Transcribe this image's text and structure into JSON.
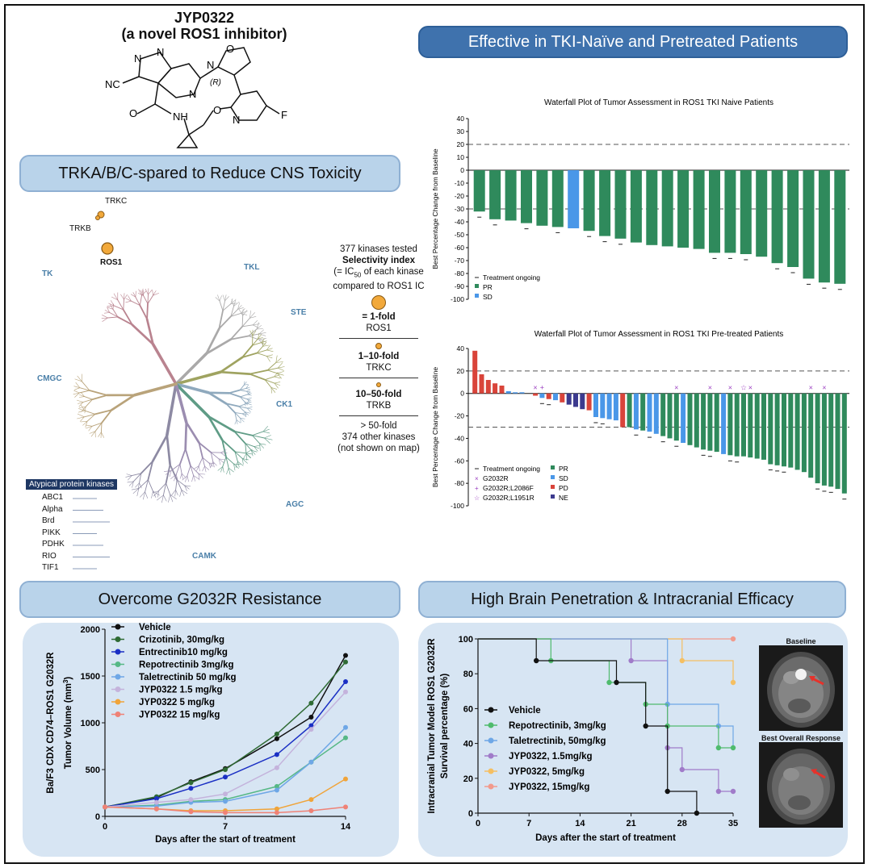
{
  "compound": {
    "name": "JYP0322",
    "subtitle": "(a novel ROS1 inhibitor)",
    "atoms": {
      "n1": "N",
      "n2": "N",
      "n3": "N",
      "n4": "N",
      "n5": "N",
      "o1": "O",
      "o2": "O",
      "o3": "O",
      "nh": "NH",
      "cn": "NC",
      "f": "F",
      "r": "(R)"
    }
  },
  "banners": {
    "top_right": "Effective in TKI-Naïve and Pretreated Patients",
    "trk": "TRKA/B/C-spared to Reduce CNS Toxicity",
    "g2032r": "Overcome G2032R Resistance",
    "brain": "High Brain Penetration & Intracranial Efficacy"
  },
  "kinome": {
    "groups": [
      "TK",
      "TKL",
      "STE",
      "CK1",
      "AGC",
      "CAMK",
      "CMGC"
    ],
    "highlights": [
      "TRKC",
      "TRKB",
      "ROS1"
    ],
    "atypical_title": "Atypical protein kinases",
    "atypical": [
      "ABC1",
      "Alpha",
      "Brd",
      "PIKK",
      "PDHK",
      "RIO",
      "TIF1"
    ]
  },
  "selectivity": {
    "line1": "377 kinases tested",
    "line2": "Selectivity index",
    "line3a": "(= IC",
    "line3sub": "50",
    "line3b": " of each kinase",
    "line4": "compared to ROS1 IC",
    "tiers": [
      {
        "fold": "= 1-fold",
        "desc": "ROS1"
      },
      {
        "fold": "1–10-fold",
        "desc": "TRKC"
      },
      {
        "fold": "10–50-fold",
        "desc": "TRKB"
      },
      {
        "fold": "> 50-fold",
        "desc": "374 other kinases",
        "desc2": "(not shown on map)"
      }
    ]
  },
  "colors": {
    "pr": "#2f8a5c",
    "sd": "#4a97e8",
    "pd": "#d9443a",
    "ne": "#3c3a8e",
    "banner": "#b9d3ea",
    "dark_banner": "#3f72ad",
    "marker": "#f2a93b"
  },
  "chart_data": [
    {
      "type": "bar",
      "title": "Waterfall Plot of Tumor Assessment in ROS1 TKI Naive Patients",
      "ylabel": "Best Percentage Change from Baseline",
      "ylim": [
        -100,
        40
      ],
      "yticks": [
        40,
        30,
        20,
        10,
        0,
        -10,
        -20,
        -30,
        -40,
        -50,
        -60,
        -70,
        -80,
        -90,
        -100
      ],
      "reference_lines": [
        20,
        -30
      ],
      "values": [
        -32,
        -38,
        -39,
        -41,
        -43,
        -44,
        -45,
        -47,
        -51,
        -53,
        -56,
        -58,
        -59,
        -60,
        -61,
        -64,
        -64,
        -65,
        -67,
        -72,
        -75,
        -84,
        -87,
        -88
      ],
      "categories": [
        "PR",
        "PR",
        "PR",
        "PR",
        "PR",
        "PR",
        "SD",
        "PR",
        "PR",
        "PR",
        "PR",
        "PR",
        "PR",
        "PR",
        "PR",
        "PR",
        "PR",
        "PR",
        "PR",
        "PR",
        "PR",
        "PR",
        "PR",
        "PR"
      ],
      "ongoing": [
        true,
        true,
        false,
        true,
        false,
        true,
        false,
        true,
        true,
        true,
        false,
        false,
        false,
        false,
        false,
        true,
        true,
        true,
        false,
        true,
        true,
        true,
        true,
        true
      ],
      "legend": [
        {
          "label": "Treatment ongoing",
          "kind": "dash"
        },
        {
          "label": "PR",
          "kind": "PR"
        },
        {
          "label": "SD",
          "kind": "SD"
        }
      ]
    },
    {
      "type": "bar",
      "title": "Waterfall Plot of Tumor Assessment in ROS1 TKI Pre-treated Patients",
      "ylabel": "Best Percentage Change from Baseline",
      "ylim": [
        -100,
        40
      ],
      "yticks": [
        40,
        20,
        0,
        -20,
        -40,
        -60,
        -80,
        -100
      ],
      "reference_lines": [
        20,
        -30
      ],
      "values": [
        38,
        17,
        12,
        9,
        7,
        2,
        1,
        1,
        0,
        -2,
        -4,
        -5,
        -6,
        -8,
        -10,
        -12,
        -14,
        -15,
        -21,
        -22,
        -23,
        -24,
        -30,
        -30,
        -32,
        -33,
        -34,
        -36,
        -38,
        -40,
        -42,
        -44,
        -46,
        -48,
        -50,
        -51,
        -52,
        -54,
        -55,
        -56,
        -56,
        -57,
        -58,
        -59,
        -63,
        -64,
        -65,
        -66,
        -68,
        -70,
        -75,
        -80,
        -82,
        -83,
        -85,
        -89
      ],
      "categories": [
        "PD",
        "PD",
        "PD",
        "PD",
        "PD",
        "SD",
        "SD",
        "SD",
        "SD",
        "PD",
        "SD",
        "PD",
        "SD",
        "PD",
        "NE",
        "NE",
        "NE",
        "PD",
        "SD",
        "SD",
        "SD",
        "SD",
        "PD",
        "PR",
        "SD",
        "PR",
        "SD",
        "SD",
        "PR",
        "PR",
        "PR",
        "SD",
        "PR",
        "PR",
        "PR",
        "PR",
        "PR",
        "SD",
        "PR",
        "PR",
        "PR",
        "PR",
        "PR",
        "PR",
        "PR",
        "PR",
        "PR",
        "PR",
        "PR",
        "PR",
        "PR",
        "PR",
        "PR",
        "PR",
        "PR",
        "PR"
      ],
      "mutation": [
        "",
        "",
        "",
        "",
        "",
        "",
        "",
        "",
        "",
        "G2032R",
        "G2032R;L2086F",
        "",
        "",
        "",
        "",
        "",
        "",
        "",
        "",
        "",
        "",
        "",
        "",
        "",
        "",
        "",
        "",
        "",
        "",
        "",
        "G2032R",
        "",
        "",
        "",
        "",
        "G2032R",
        "",
        "",
        "G2032R",
        "",
        "G2032R;L1951R",
        "G2032R",
        "",
        "",
        "",
        "",
        "",
        "",
        "",
        "",
        "G2032R",
        "",
        "G2032R",
        "",
        "",
        ""
      ],
      "ongoing": [
        false,
        false,
        false,
        false,
        false,
        false,
        false,
        false,
        false,
        false,
        true,
        true,
        false,
        false,
        false,
        false,
        false,
        false,
        true,
        true,
        false,
        false,
        false,
        false,
        true,
        false,
        true,
        false,
        true,
        false,
        true,
        false,
        false,
        false,
        true,
        true,
        false,
        false,
        true,
        true,
        false,
        false,
        false,
        false,
        true,
        true,
        true,
        false,
        false,
        false,
        false,
        true,
        true,
        true,
        false,
        true
      ],
      "legend": [
        {
          "label": "Treatment ongoing",
          "kind": "dash"
        },
        {
          "label": "PR",
          "kind": "PR"
        },
        {
          "label": "G2032R",
          "kind": "x"
        },
        {
          "label": "SD",
          "kind": "SD"
        },
        {
          "label": "G2032R;L2086F",
          "kind": "plus"
        },
        {
          "label": "PD",
          "kind": "PD"
        },
        {
          "label": "G2032R;L1951R",
          "kind": "star"
        },
        {
          "label": "NE",
          "kind": "NE"
        }
      ]
    },
    {
      "type": "line",
      "ylabel": "Tumor Volume (mm",
      "ylabel_sup": "3",
      "ylabel_close": ")",
      "ylabel2": "Ba/F3 CDX CD74–ROS1 G2032R",
      "xlabel": "Days after the start of treatment",
      "ylim": [
        0,
        2000
      ],
      "yticks": [
        0,
        500,
        1000,
        1500,
        2000
      ],
      "xlim": [
        0,
        14
      ],
      "xticks": [
        0,
        7,
        14
      ],
      "x": [
        0,
        3,
        5,
        7,
        10,
        12,
        14
      ],
      "series": [
        {
          "name": "Vehicle",
          "color": "#111111",
          "values": [
            100,
            200,
            370,
            510,
            830,
            1060,
            1720
          ]
        },
        {
          "name": "Crizotinib, 30mg/kg",
          "color": "#2f6b34",
          "values": [
            100,
            210,
            360,
            500,
            880,
            1210,
            1650
          ]
        },
        {
          "name": "Entrectinib10 mg/kg",
          "color": "#1a2fc4",
          "values": [
            100,
            190,
            300,
            420,
            660,
            970,
            1440
          ]
        },
        {
          "name": "Repotrectinib 3mg/kg",
          "color": "#56b886",
          "values": [
            100,
            120,
            160,
            180,
            320,
            580,
            840
          ]
        },
        {
          "name": "Taletrectinib 50 mg/kg",
          "color": "#6ea7e6",
          "values": [
            100,
            110,
            150,
            160,
            280,
            580,
            950
          ]
        },
        {
          "name": "JYP0322 1.5 mg/kg",
          "color": "#c4b3dc",
          "values": [
            100,
            150,
            180,
            240,
            520,
            930,
            1330
          ]
        },
        {
          "name": "JYP0322 5 mg/kg",
          "color": "#f0a43a",
          "values": [
            100,
            80,
            60,
            60,
            80,
            180,
            400
          ]
        },
        {
          "name": "JYP0322 15 mg/kg",
          "color": "#ef8276",
          "values": [
            100,
            80,
            50,
            40,
            40,
            60,
            100
          ]
        }
      ]
    },
    {
      "type": "line",
      "subtype": "step",
      "ylabel": "Intracranial Tumor Model ROS1 G2032R",
      "ylabel2": "Survival percentage (%)",
      "xlabel": "Days after the start of treatment",
      "ylim": [
        0,
        100
      ],
      "yticks": [
        0,
        20,
        40,
        60,
        80,
        100
      ],
      "xlim": [
        0,
        35
      ],
      "xticks": [
        0,
        7,
        14,
        21,
        28,
        35
      ],
      "series": [
        {
          "name": "Vehicle",
          "color": "#111111",
          "points": [
            [
              0,
              100
            ],
            [
              8,
              100
            ],
            [
              8,
              87.5
            ],
            [
              19,
              87.5
            ],
            [
              19,
              75
            ],
            [
              23,
              75
            ],
            [
              23,
              50
            ],
            [
              26,
              50
            ],
            [
              26,
              12.5
            ],
            [
              30,
              12.5
            ],
            [
              30,
              0
            ]
          ],
          "markers": [
            [
              8,
              87.5
            ],
            [
              19,
              75
            ],
            [
              23,
              50
            ],
            [
              26,
              12.5
            ],
            [
              30,
              0
            ]
          ]
        },
        {
          "name": "Repotrectinib, 3mg/kg",
          "color": "#4fbb6d",
          "points": [
            [
              0,
              100
            ],
            [
              10,
              100
            ],
            [
              10,
              87.5
            ],
            [
              18,
              87.5
            ],
            [
              18,
              75
            ],
            [
              23,
              75
            ],
            [
              23,
              62.5
            ],
            [
              26,
              62.5
            ],
            [
              26,
              50
            ],
            [
              33,
              50
            ],
            [
              33,
              37.5
            ],
            [
              35,
              37.5
            ]
          ],
          "markers": [
            [
              10,
              87.5
            ],
            [
              18,
              75
            ],
            [
              23,
              62.5
            ],
            [
              26,
              50
            ],
            [
              33,
              37.5
            ],
            [
              35,
              37.5
            ]
          ]
        },
        {
          "name": "Taletrectinib, 50mg/kg",
          "color": "#6ea7e6",
          "points": [
            [
              0,
              100
            ],
            [
              26,
              100
            ],
            [
              26,
              62.5
            ],
            [
              33,
              62.5
            ],
            [
              33,
              50
            ],
            [
              35,
              50
            ],
            [
              35,
              37.5
            ]
          ],
          "markers": [
            [
              26,
              62.5
            ],
            [
              33,
              50
            ]
          ]
        },
        {
          "name": "JYP0322, 1.5mg/kg",
          "color": "#a07bc9",
          "points": [
            [
              0,
              100
            ],
            [
              21,
              100
            ],
            [
              21,
              87.5
            ],
            [
              26,
              87.5
            ],
            [
              26,
              37.5
            ],
            [
              28,
              37.5
            ],
            [
              28,
              25
            ],
            [
              33,
              25
            ],
            [
              33,
              12.5
            ],
            [
              35,
              12.5
            ]
          ],
          "markers": [
            [
              21,
              87.5
            ],
            [
              26,
              37.5
            ],
            [
              28,
              25
            ],
            [
              33,
              12.5
            ],
            [
              35,
              12.5
            ]
          ]
        },
        {
          "name": "JYP0322, 5mg/kg",
          "color": "#f5bf62",
          "points": [
            [
              0,
              100
            ],
            [
              28,
              100
            ],
            [
              28,
              87.5
            ],
            [
              35,
              87.5
            ],
            [
              35,
              75
            ]
          ],
          "markers": [
            [
              28,
              87.5
            ],
            [
              35,
              75
            ]
          ]
        },
        {
          "name": "JYP0322, 15mg/kg",
          "color": "#f29a8c",
          "points": [
            [
              0,
              100
            ],
            [
              35,
              100
            ]
          ],
          "markers": [
            [
              35,
              100
            ]
          ]
        }
      ]
    }
  ],
  "mri": {
    "baseline": "Baseline",
    "response": "Best Overall Response"
  }
}
